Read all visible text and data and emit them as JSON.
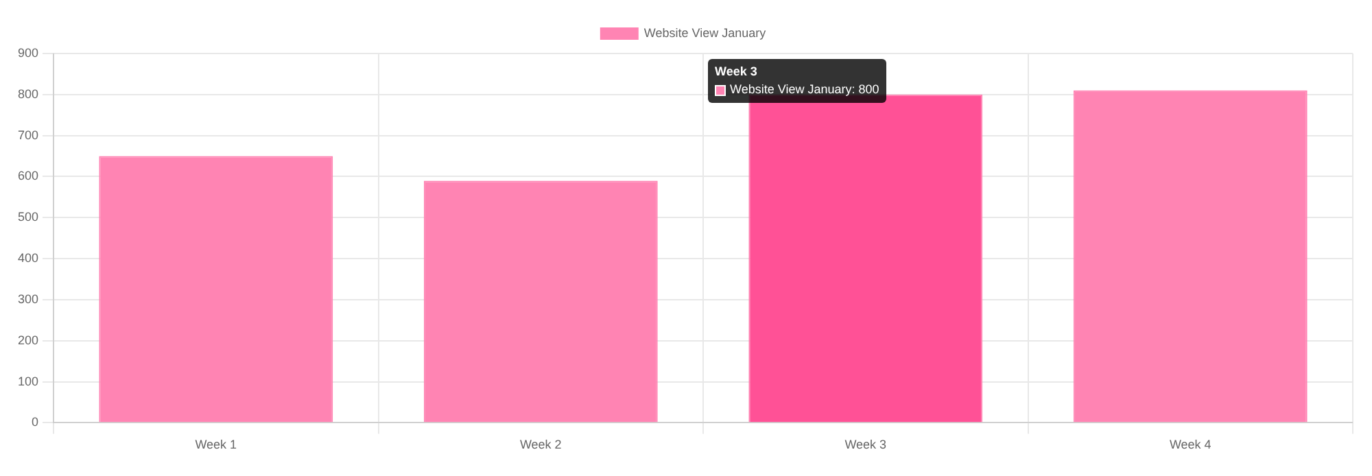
{
  "chart_data": {
    "type": "bar",
    "categories": [
      "Week 1",
      "Week 2",
      "Week 3",
      "Week 4"
    ],
    "series": [
      {
        "name": "Website View January",
        "color": "#ff84b3",
        "colors": [
          "#ff84b3",
          "#ff84b3",
          "#ff5196",
          "#ff84b3"
        ],
        "values": [
          650,
          590,
          800,
          810
        ]
      }
    ],
    "ylim": [
      0,
      900
    ],
    "yticks": [
      0,
      100,
      200,
      300,
      400,
      500,
      600,
      700,
      800,
      900
    ],
    "grid": true,
    "legend": "top",
    "annotations": [
      "Week 3",
      "Website View January: 800"
    ]
  }
}
